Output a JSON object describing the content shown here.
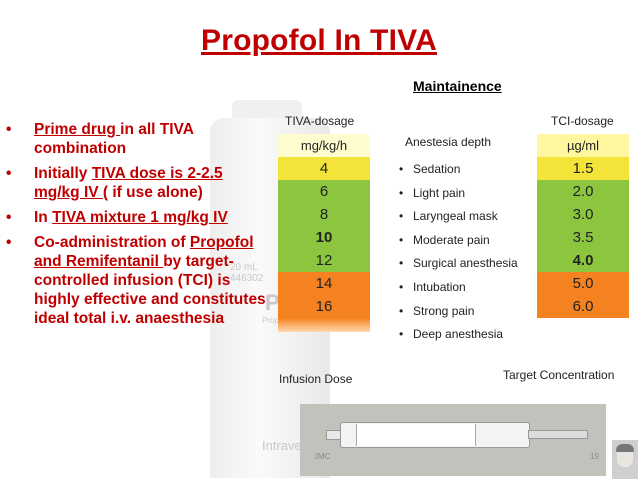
{
  "title": "Propofol In TIVA",
  "subtitle": "Maintainence",
  "bullets": [
    {
      "parts": [
        {
          "text": "Prime  drug ",
          "underline": true
        },
        {
          "text": "in all TIVA combination",
          "underline": false
        }
      ]
    },
    {
      "parts": [
        {
          "text": "Initially  ",
          "underline": false
        },
        {
          "text": "TIVA dose is 2-2.5 mg/kg IV ",
          "underline": true
        },
        {
          "text": "( if use alone)",
          "underline": false
        }
      ]
    },
    {
      "parts": [
        {
          "text": "In ",
          "underline": false
        },
        {
          "text": "TIVA mixture 1 mg/kg IV",
          "underline": true
        }
      ]
    },
    {
      "parts": [
        {
          "text": "Co-administration of ",
          "underline": false
        },
        {
          "text": "Propofol and Remifentanil ",
          "underline": true
        },
        {
          "text": "by  target-controlled infusion (TCI) is highly effective  and constitutes  ideal total i.v. anaesthesia",
          "underline": false
        }
      ]
    }
  ],
  "vial": {
    "volume": "20 mL 446302",
    "brand": "Pro",
    "sub": "Propofol",
    "emulsion": "Intravenous Emulsion"
  },
  "panel": {
    "left_header": "TIVA-dosage",
    "mid_header": "Anestesia depth",
    "right_header": "TCI-dosage",
    "left_unit": "mg/kg/h",
    "right_unit": "µg/ml",
    "left_values": [
      "4",
      "6",
      "8",
      "10",
      "12",
      "14",
      "16"
    ],
    "right_values": [
      "1.5",
      "2.0",
      "3.0",
      "3.5",
      "4.0",
      "5.0",
      "6.0"
    ],
    "depths": [
      "Sedation",
      "Light pain",
      "Laryngeal mask",
      "Moderate pain",
      "Surgical anesthesia",
      "Intubation",
      "Strong pain",
      "Deep anesthesia"
    ],
    "left_footer": "Infusion Dose",
    "right_footer": "Target Concentration",
    "colors": {
      "unit_row": "#fffdd0",
      "yellow": "#f4e43a",
      "green": "#8cc63f",
      "orange": "#f58220",
      "light_yellow": "#fff6a0"
    }
  },
  "watermark": "JMC",
  "page_number": "19",
  "accent_color": "#c00000"
}
